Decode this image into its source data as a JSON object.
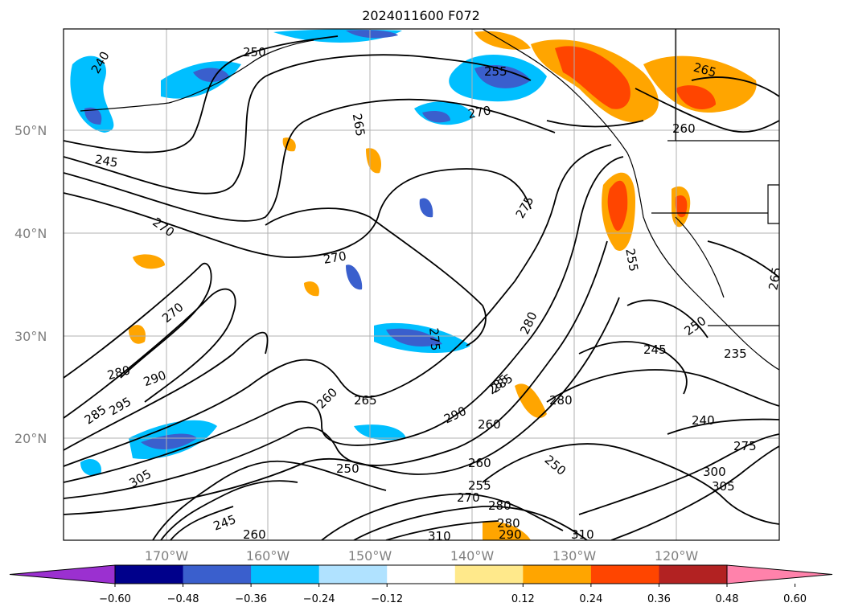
{
  "title": "2024011600 F072",
  "map": {
    "lat_labels": [
      "50°N",
      "40°N",
      "30°N",
      "20°N"
    ],
    "lon_labels": [
      "170°W",
      "160°W",
      "150°W",
      "140°W",
      "130°W",
      "120°W"
    ],
    "contour_labels": [
      "240",
      "250",
      "255",
      "270",
      "265",
      "260",
      "265",
      "245",
      "275",
      "270",
      "270",
      "270",
      "275",
      "280",
      "285",
      "280",
      "290",
      "285",
      "295",
      "280",
      "260",
      "265",
      "290",
      "285",
      "250",
      "260",
      "255",
      "270",
      "280",
      "260",
      "250",
      "240",
      "275",
      "300",
      "305",
      "310",
      "305",
      "245",
      "310",
      "280",
      "290",
      "260",
      "245",
      "235",
      "265",
      "250",
      "255"
    ],
    "grid": true,
    "coastlines": true
  },
  "colorbar": {
    "ticks": [
      "−0.60",
      "−0.48",
      "−0.36",
      "−0.24",
      "−0.12",
      "0.12",
      "0.24",
      "0.36",
      "0.48",
      "0.60"
    ],
    "colors": [
      "#9b30d0",
      "#00008b",
      "#3a5fcd",
      "#00bfff",
      "#b0e2ff",
      "#ffffff",
      "#ffe98b",
      "#ffa500",
      "#ff4500",
      "#b22222",
      "#ff82ab"
    ]
  }
}
